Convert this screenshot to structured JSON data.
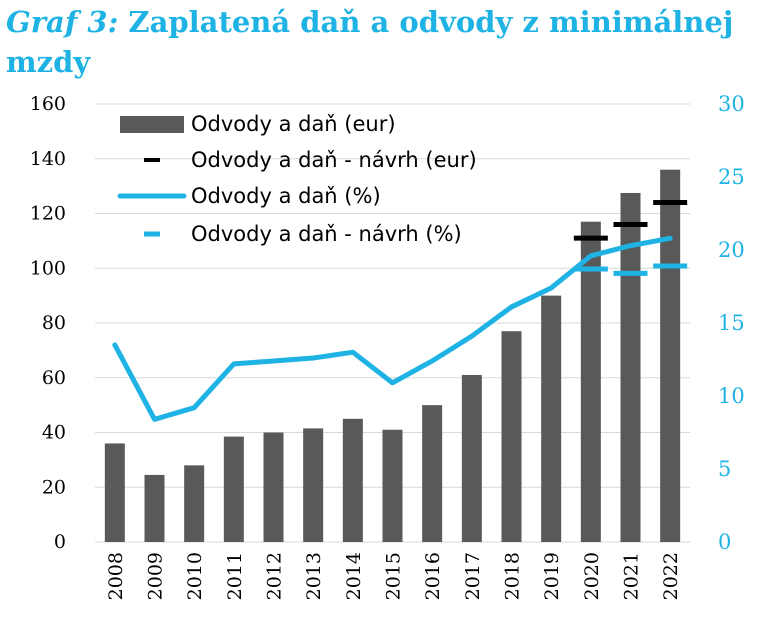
{
  "title": {
    "prefix": "Graf 3:",
    "text": " Zaplatená daň a odvody z minimálnej mzdy"
  },
  "colors": {
    "bar": "#595959",
    "line": "#1fb3e5",
    "proposal_eur": "#000000",
    "grid": "#d9d9d9"
  },
  "chart_data": {
    "type": "bar",
    "categories": [
      "2008",
      "2009",
      "2010",
      "2011",
      "2012",
      "2013",
      "2014",
      "2015",
      "2016",
      "2017",
      "2018",
      "2019",
      "2020",
      "2021",
      "2022"
    ],
    "y_left": {
      "lim": [
        0,
        160
      ],
      "ticks": [
        0,
        20,
        40,
        60,
        80,
        100,
        120,
        140,
        160
      ]
    },
    "y_right": {
      "lim": [
        0,
        30
      ],
      "ticks": [
        0,
        5,
        10,
        15,
        20,
        25,
        30
      ]
    },
    "grid": true,
    "legend_position": "top-left",
    "series": [
      {
        "name": "Odvody a daň (eur)",
        "type": "bar",
        "axis": "left",
        "values": [
          36,
          24.5,
          28,
          38.5,
          40,
          41.5,
          45,
          41,
          50,
          61,
          77,
          90,
          117,
          127.5,
          136
        ]
      },
      {
        "name": "Odvody a daň - návrh (eur)",
        "type": "dash-marker",
        "axis": "left",
        "values": [
          null,
          null,
          null,
          null,
          null,
          null,
          null,
          null,
          null,
          null,
          null,
          null,
          111,
          116,
          124
        ]
      },
      {
        "name": "Odvody a daň (%)",
        "type": "line",
        "axis": "right",
        "values": [
          13.5,
          8.4,
          9.2,
          12.2,
          12.4,
          12.6,
          13,
          10.9,
          12.4,
          14.1,
          16.1,
          17.4,
          19.6,
          20.3,
          20.8
        ]
      },
      {
        "name": "Odvody a daň - návrh (%)",
        "type": "dashed-line",
        "axis": "right",
        "values": [
          null,
          null,
          null,
          null,
          null,
          null,
          null,
          null,
          null,
          null,
          null,
          null,
          18.7,
          18.4,
          18.9
        ]
      }
    ]
  }
}
